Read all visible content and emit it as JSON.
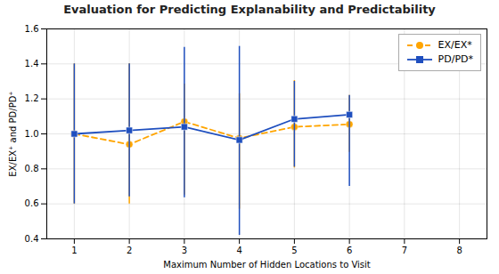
{
  "chart_data": {
    "type": "line",
    "title": "Evaluation for Predicting Explanability and Predictability",
    "xlabel": "Maximum Number of Hidden Locations to Visit",
    "ylabel": "EX/EX⁺ and PD/PD⁺",
    "x": [
      1,
      2,
      3,
      4,
      5,
      6
    ],
    "series": [
      {
        "name": "EX/EX*",
        "color": "#FFA500",
        "marker": "circle",
        "line_style": "dashed",
        "values": [
          1.0,
          0.94,
          1.07,
          0.975,
          1.04,
          1.055
        ],
        "yerr_low": [
          0.4,
          0.34,
          0.42,
          0.405,
          0.235,
          0.16
        ],
        "yerr_high": [
          0.4,
          0.46,
          0.215,
          0.255,
          0.265,
          0.165
        ]
      },
      {
        "name": "PD/PD*",
        "color": "#1F4FBF",
        "marker": "square",
        "line_style": "solid",
        "values": [
          1.0,
          1.02,
          1.04,
          0.965,
          1.085,
          1.11
        ],
        "yerr_low": [
          0.4,
          0.38,
          0.405,
          0.545,
          0.275,
          0.41
        ],
        "yerr_high": [
          0.4,
          0.38,
          0.455,
          0.535,
          0.215,
          0.11
        ]
      }
    ],
    "xlim": [
      0.5,
      8.5
    ],
    "xticks": [
      1,
      2,
      3,
      4,
      5,
      6,
      7,
      8
    ],
    "ylim": [
      0.4,
      1.6
    ],
    "yticks": [
      0.4,
      0.6,
      0.8,
      {
        "value": 1.0,
        "label": "1.0"
      },
      1.2,
      1.4,
      1.6
    ],
    "grid": true,
    "legend": "upper right"
  }
}
